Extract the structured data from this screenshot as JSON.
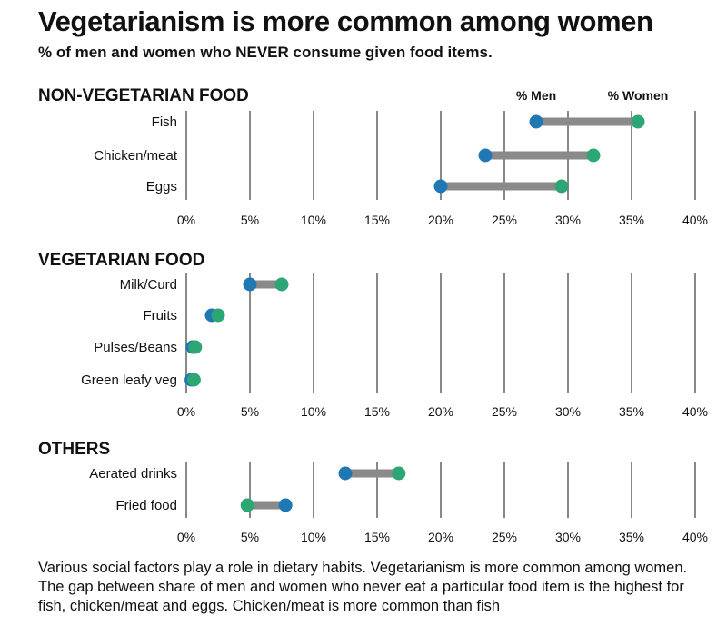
{
  "title": "Vegetarianism is more common among women",
  "subtitle": "% of men and women who NEVER consume given food items.",
  "caption": "Various social factors play a role in dietary habits. Vegetarianism is more common among women. The gap between share of men and women who never eat a particular food item is the highest for fish, chicken/meat and eggs.  Chicken/meat is more common than fish",
  "colors": {
    "men": "#1f77b4",
    "women": "#2ca672",
    "connector": "#8a8a8a",
    "grid": "#888888"
  },
  "chart_data": {
    "type": "dumbbell",
    "xlim": [
      0,
      40
    ],
    "ticks": [
      "0%",
      "5%",
      "10%",
      "15%",
      "20%",
      "25%",
      "30%",
      "35%",
      "40%"
    ],
    "tick_values": [
      0,
      5,
      10,
      15,
      20,
      25,
      30,
      35,
      40
    ],
    "legend": {
      "men": "% Men",
      "women": "% Women"
    },
    "sections": [
      {
        "name": "NON-VEGETARIAN FOOD",
        "rows": [
          {
            "label": "Fish",
            "men": 27.5,
            "women": 35.5
          },
          {
            "label": "Chicken/meat",
            "men": 23.5,
            "women": 32.0
          },
          {
            "label": "Eggs",
            "men": 20.0,
            "women": 29.5
          }
        ]
      },
      {
        "name": "VEGETARIAN FOOD",
        "rows": [
          {
            "label": "Milk/Curd",
            "men": 5.0,
            "women": 7.5
          },
          {
            "label": "Fruits",
            "men": 2.0,
            "women": 2.5
          },
          {
            "label": "Pulses/Beans",
            "men": 0.5,
            "women": 0.7
          },
          {
            "label": "Green leafy veg",
            "men": 0.4,
            "women": 0.6
          }
        ]
      },
      {
        "name": "OTHERS",
        "rows": [
          {
            "label": "Aerated drinks",
            "men": 12.5,
            "women": 16.7
          },
          {
            "label": "Fried food",
            "men": 7.8,
            "women": 4.8
          }
        ]
      }
    ]
  }
}
